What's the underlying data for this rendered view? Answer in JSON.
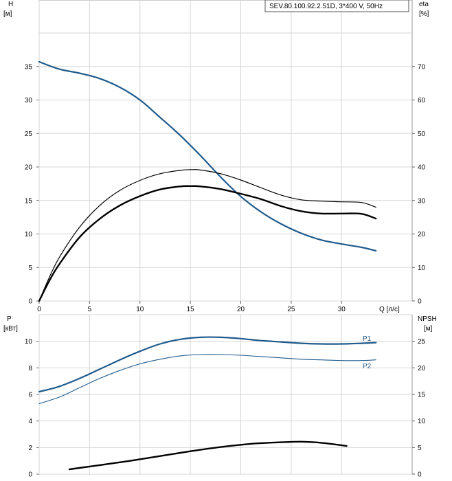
{
  "legend": {
    "text": "SEV.80.100.92.2.51D, 3*400 V, 50Hz"
  },
  "chart_data": [
    {
      "type": "line",
      "panel": "top",
      "xlabel": "Q [л/с]",
      "xlim": [
        0,
        37
      ],
      "xticks": [
        0,
        5,
        10,
        15,
        20,
        25,
        30
      ],
      "ylabel": "H",
      "ylabel_unit": "[м]",
      "ylim": [
        0,
        40
      ],
      "yticks": [
        0,
        5,
        10,
        15,
        20,
        25,
        30,
        35
      ],
      "y2label": "eta",
      "y2label_unit": "[%]",
      "y2lim": [
        0,
        80
      ],
      "y2ticks": [
        0,
        10,
        20,
        30,
        40,
        50,
        60,
        70
      ],
      "grid": true,
      "series": [
        {
          "axis": "left",
          "color": "#1f5a8c",
          "width": 2.2,
          "x": [
            0,
            2,
            4,
            6,
            8,
            10,
            12,
            14,
            16,
            18,
            20,
            22,
            24,
            26,
            28,
            30,
            32,
            33.4
          ],
          "values": [
            35.7,
            34.6,
            34.0,
            33.2,
            31.9,
            30.0,
            27.4,
            24.7,
            21.7,
            18.5,
            15.6,
            13.3,
            11.5,
            10.1,
            9.1,
            8.5,
            8.0,
            7.5
          ]
        },
        {
          "axis": "right",
          "color": "#000000",
          "width": 1.2,
          "x": [
            0,
            1,
            2,
            4,
            6,
            8,
            10,
            12,
            14,
            15,
            16,
            18,
            20,
            22,
            24,
            26,
            28,
            30,
            32,
            33.4
          ],
          "values": [
            0,
            7,
            13,
            22,
            28.5,
            33,
            36,
            38,
            39,
            39.2,
            39.1,
            38,
            36.1,
            33.8,
            31.6,
            30.2,
            29.8,
            29.6,
            29.4,
            28
          ]
        },
        {
          "axis": "right",
          "color": "#000000",
          "width": 2.4,
          "x": [
            0,
            1,
            2,
            4,
            6,
            8,
            10,
            12,
            14,
            15,
            16,
            18,
            20,
            22,
            24,
            26,
            28,
            30,
            32,
            33.4
          ],
          "values": [
            0,
            6,
            11,
            19,
            24.5,
            28.5,
            31.3,
            33.3,
            34.2,
            34.3,
            34.2,
            33.4,
            32.0,
            30.4,
            28.3,
            26.8,
            26.1,
            26.1,
            26.0,
            24.6
          ]
        }
      ]
    },
    {
      "type": "line",
      "panel": "bottom",
      "xlim": [
        0,
        37
      ],
      "ylabel": "P",
      "ylabel_unit": "[кВт]",
      "ylim": [
        0,
        12
      ],
      "yticks": [
        0,
        2,
        4,
        6,
        8,
        10
      ],
      "y2label": "NPSH",
      "y2label_unit": "[м]",
      "y2lim": [
        0,
        30
      ],
      "y2ticks": [
        0,
        5,
        10,
        15,
        20,
        25
      ],
      "grid": true,
      "series": [
        {
          "name": "P1",
          "axis": "left",
          "color": "#1f5a8c",
          "width": 2.2,
          "x": [
            0,
            2,
            4,
            6,
            8,
            10,
            12,
            14,
            16,
            18,
            20,
            22,
            24,
            26,
            28,
            30,
            32,
            33.4
          ],
          "values": [
            6.2,
            6.6,
            7.2,
            7.9,
            8.6,
            9.25,
            9.8,
            10.15,
            10.3,
            10.3,
            10.2,
            10.05,
            9.95,
            9.85,
            9.8,
            9.8,
            9.85,
            9.9
          ]
        },
        {
          "name": "P2",
          "axis": "left",
          "color": "#1f5a8c",
          "width": 1.1,
          "x": [
            0,
            2,
            4,
            6,
            8,
            10,
            12,
            14,
            16,
            18,
            20,
            22,
            24,
            26,
            28,
            30,
            32,
            33.4
          ],
          "values": [
            5.3,
            5.8,
            6.5,
            7.2,
            7.8,
            8.3,
            8.65,
            8.9,
            9.0,
            9.0,
            8.95,
            8.85,
            8.75,
            8.65,
            8.6,
            8.55,
            8.55,
            8.6
          ]
        },
        {
          "axis": "right",
          "color": "#000000",
          "width": 2.4,
          "x": [
            3,
            6,
            9,
            12,
            15,
            18,
            21,
            24,
            26,
            28,
            30.5
          ],
          "values": [
            0.9,
            1.7,
            2.5,
            3.4,
            4.3,
            5.1,
            5.7,
            6.0,
            6.1,
            5.9,
            5.3
          ]
        }
      ]
    }
  ]
}
